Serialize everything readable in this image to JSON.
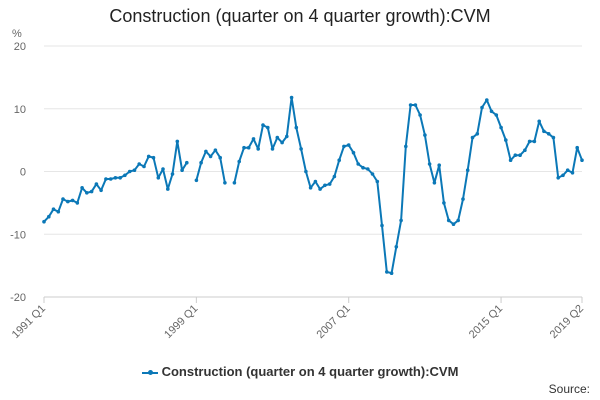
{
  "chart_data": {
    "type": "line",
    "title": "Construction (quarter on 4 quarter growth):CVM",
    "ylabel": "%",
    "ylim": [
      -20,
      20
    ],
    "yticks": [
      20,
      10,
      0,
      -10,
      -20
    ],
    "x_start": "1991 Q1",
    "x_end": "2019 Q2",
    "xticks": [
      "1991 Q1",
      "1999 Q1",
      "2007 Q1",
      "2015 Q1",
      "2019 Q2"
    ],
    "grid": true,
    "legend_position": "bottom",
    "series": [
      {
        "name": "Construction (quarter on 4 quarter growth):CVM",
        "color": "#0b78b7",
        "values": [
          -8.0,
          -7.2,
          -6.0,
          -6.4,
          -4.4,
          -4.8,
          -4.6,
          -5.0,
          -2.6,
          -3.4,
          -3.2,
          -2.0,
          -3.0,
          -1.2,
          -1.2,
          -1.0,
          -1.0,
          -0.6,
          0.0,
          0.2,
          1.2,
          0.8,
          2.4,
          2.2,
          -1.0,
          0.4,
          -2.8,
          -0.4,
          4.8,
          0.2,
          1.4,
          null,
          -1.4,
          1.4,
          3.2,
          2.4,
          3.4,
          2.2,
          -1.8,
          null,
          -1.8,
          1.6,
          3.8,
          3.8,
          5.2,
          3.6,
          7.4,
          7.0,
          3.6,
          5.4,
          4.6,
          5.6,
          11.8,
          7.0,
          3.6,
          0.0,
          -2.6,
          -1.6,
          -2.8,
          -2.2,
          -2.0,
          -0.8,
          1.8,
          4.0,
          4.2,
          3.0,
          1.2,
          0.6,
          0.4,
          -0.4,
          -1.6,
          -8.6,
          -16.0,
          -16.2,
          -12.0,
          -7.8,
          4.0,
          10.6,
          10.6,
          9.0,
          5.8,
          1.2,
          -1.8,
          1.0,
          -5.0,
          -7.8,
          -8.4,
          -7.8,
          -4.4,
          0.2,
          5.4,
          6.0,
          10.2,
          11.4,
          9.6,
          9.0,
          7.0,
          5.0,
          1.8,
          2.6,
          2.6,
          3.4,
          4.8,
          4.8,
          8.0,
          6.4,
          6.0,
          5.4,
          -1.0,
          -0.6,
          0.2,
          -0.2,
          3.8,
          1.8
        ]
      }
    ]
  },
  "source_label": "Source:"
}
